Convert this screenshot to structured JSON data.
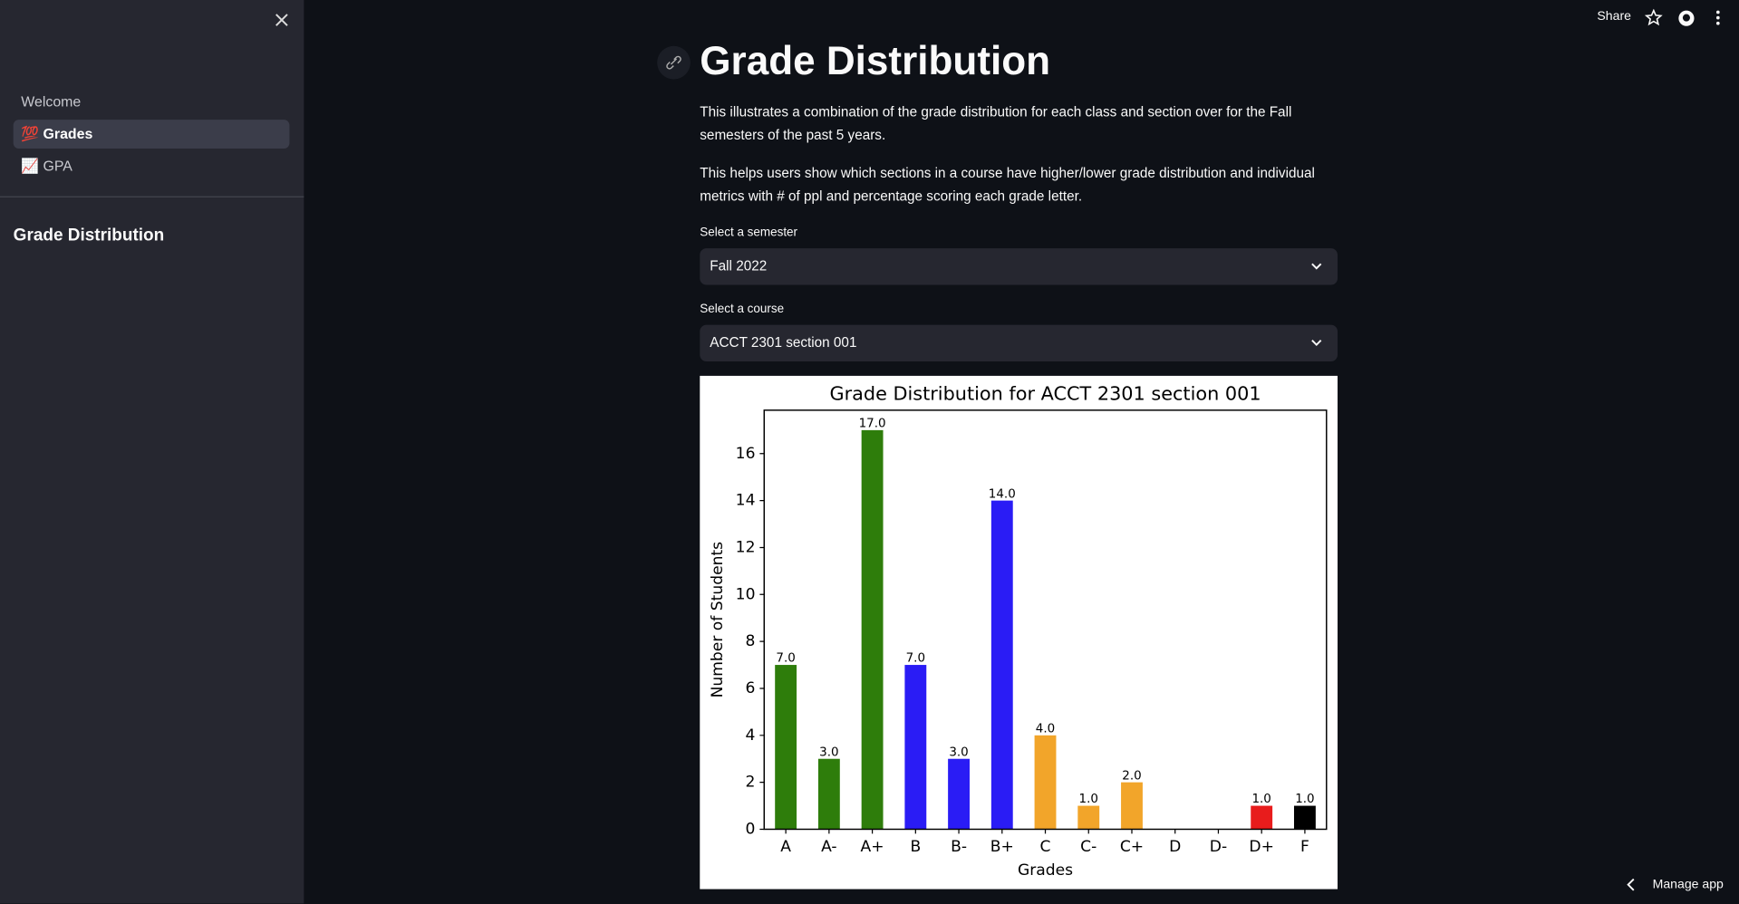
{
  "sidebar": {
    "nav": [
      {
        "label": "Welcome"
      },
      {
        "icon": "💯",
        "label": "Grades"
      },
      {
        "icon": "📈",
        "label": "GPA"
      }
    ],
    "title": "Grade Distribution"
  },
  "header": {
    "share": "Share"
  },
  "footer": {
    "manage_app": "Manage app"
  },
  "page": {
    "title": "Grade Distribution",
    "paragraphs": [
      "This illustrates a combination of the grade distribution for each class and section over for the Fall semesters of the past 5 years.",
      "This helps users show which sections in a course have higher/lower grade distribution and individual metrics with # of ppl and percentage scoring each grade letter."
    ],
    "selects": [
      {
        "label": "Select a semester",
        "value": "Fall 2022"
      },
      {
        "label": "Select a course",
        "value": "ACCT 2301 section 001"
      }
    ]
  },
  "chart_data": {
    "type": "bar",
    "title": "Grade Distribution for ACCT 2301 section 001",
    "x_label": "Grades",
    "y_label": "Number of Students",
    "categories": [
      "A",
      "A-",
      "A+",
      "B",
      "B-",
      "B+",
      "C",
      "C-",
      "C+",
      "D",
      "D-",
      "D+",
      "F"
    ],
    "values": [
      7,
      3,
      17,
      7,
      3,
      14,
      4,
      1,
      2,
      0,
      0,
      1,
      1
    ],
    "value_labels": [
      "7.0",
      "3.0",
      "17.0",
      "7.0",
      "3.0",
      "14.0",
      "4.0",
      "1.0",
      "2.0",
      null,
      null,
      "1.0",
      "1.0"
    ],
    "colors": [
      "#2e7d0b",
      "#2e7d0b",
      "#2e7d0b",
      "#2a1cf5",
      "#2a1cf5",
      "#2a1cf5",
      "#f2a52a",
      "#f2a52a",
      "#f2a52a",
      "#e81c1c",
      "#e81c1c",
      "#e81c1c",
      "#000000"
    ],
    "ylim": [
      0,
      17.85
    ],
    "yticks": [
      0,
      2,
      4,
      6,
      8,
      10,
      12,
      14,
      16
    ],
    "grid": false
  }
}
